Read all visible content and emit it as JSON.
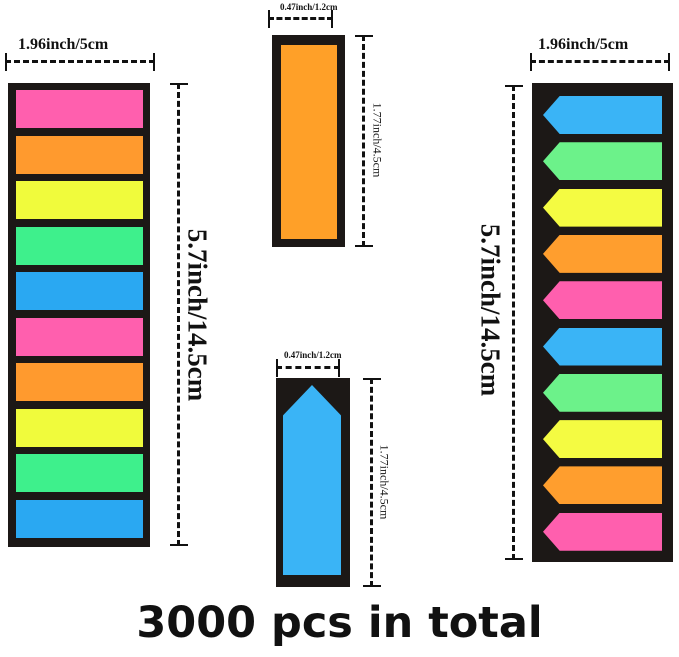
{
  "left_strip": {
    "width_label": "1.96inch/5cm",
    "height_label": "5.7inch/14.5cm",
    "colors": [
      "#ff5fae",
      "#ff9a2e",
      "#f0fb3c",
      "#3ef08c",
      "#2aa8f2",
      "#ff5fae",
      "#ff9a2e",
      "#f0fb3c",
      "#3ef08c",
      "#2aa8f2"
    ]
  },
  "middle_top": {
    "width_label": "0.47inch/1.2cm",
    "height_label": "1.77inch/4.5cm",
    "color": "#ffa028"
  },
  "middle_bottom": {
    "width_label": "0.47inch/1.2cm",
    "height_label": "1.77inch/4.5cm",
    "color": "#3ab4f6"
  },
  "right_strip": {
    "width_label": "1.96inch/5cm",
    "height_label": "5.7inch/14.5cm",
    "colors": [
      "#3ab4f6",
      "#6cf28a",
      "#f4fb42",
      "#ff9e2e",
      "#ff5fae",
      "#3ab4f6",
      "#6cf28a",
      "#f4fb42",
      "#ff9e2e",
      "#ff5fae"
    ]
  },
  "caption": "3000 pcs in total"
}
